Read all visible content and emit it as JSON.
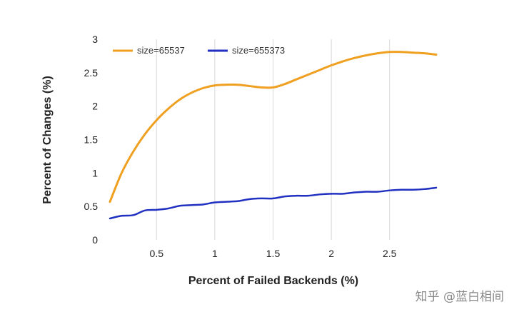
{
  "watermark": "知乎 @蓝白相间",
  "chart_data": {
    "type": "line",
    "title": "",
    "xlabel": "Percent of Failed Backends (%)",
    "ylabel": "Percent of Changes (%)",
    "xlim": [
      0.1,
      2.9
    ],
    "ylim": [
      0,
      3
    ],
    "x_ticks": [
      0.5,
      1,
      1.5,
      2,
      2.5
    ],
    "x_tick_labels": [
      "0.5",
      "1",
      "1.5",
      "2",
      "2.5"
    ],
    "y_ticks": [
      0,
      0.5,
      1,
      1.5,
      2,
      2.5,
      3
    ],
    "y_tick_labels": [
      "0",
      "0.5",
      "1",
      "1.5",
      "2",
      "2.5",
      "3"
    ],
    "grid": "vertical",
    "legend_position": "top-left",
    "series": [
      {
        "name": "size=65537",
        "color": "#f0a020",
        "x": [
          0.1,
          0.2,
          0.3,
          0.4,
          0.5,
          0.6,
          0.7,
          0.8,
          0.9,
          1.0,
          1.1,
          1.2,
          1.3,
          1.4,
          1.5,
          1.6,
          1.7,
          1.8,
          1.9,
          2.0,
          2.1,
          2.2,
          2.3,
          2.4,
          2.5,
          2.6,
          2.7,
          2.8,
          2.9
        ],
        "values": [
          0.57,
          1.0,
          1.32,
          1.58,
          1.79,
          1.96,
          2.1,
          2.2,
          2.27,
          2.31,
          2.32,
          2.32,
          2.3,
          2.28,
          2.28,
          2.33,
          2.4,
          2.47,
          2.54,
          2.61,
          2.67,
          2.72,
          2.76,
          2.79,
          2.81,
          2.81,
          2.8,
          2.79,
          2.77
        ]
      },
      {
        "name": "size=655373",
        "color": "#2030c0",
        "x": [
          0.1,
          0.2,
          0.3,
          0.4,
          0.5,
          0.6,
          0.7,
          0.8,
          0.9,
          1.0,
          1.1,
          1.2,
          1.3,
          1.4,
          1.5,
          1.6,
          1.7,
          1.8,
          1.9,
          2.0,
          2.1,
          2.2,
          2.3,
          2.4,
          2.5,
          2.6,
          2.7,
          2.8,
          2.9
        ],
        "values": [
          0.32,
          0.36,
          0.37,
          0.44,
          0.45,
          0.47,
          0.51,
          0.52,
          0.53,
          0.56,
          0.57,
          0.58,
          0.61,
          0.62,
          0.62,
          0.65,
          0.66,
          0.66,
          0.68,
          0.69,
          0.69,
          0.71,
          0.72,
          0.72,
          0.74,
          0.75,
          0.75,
          0.76,
          0.78
        ]
      }
    ]
  }
}
